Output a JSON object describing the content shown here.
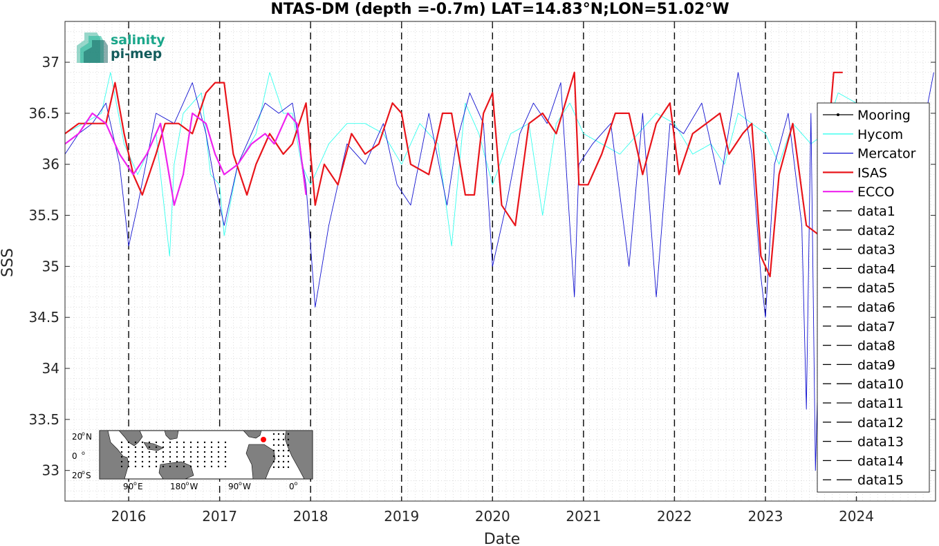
{
  "chart_data": {
    "type": "line",
    "title": "NTAS-DM (depth =-0.7m) LAT=14.83°N;LON=51.02°W",
    "xlabel": "Date",
    "ylabel": "SSS",
    "xlim": [
      2015.3,
      2024.87
    ],
    "ylim": [
      32.7,
      37.4
    ],
    "xticks": [
      2016,
      2017,
      2018,
      2019,
      2020,
      2021,
      2022,
      2023,
      2024
    ],
    "xtick_labels": [
      "2016",
      "2017",
      "2018",
      "2019",
      "2020",
      "2021",
      "2022",
      "2023",
      "2024"
    ],
    "yticks": [
      33,
      33.5,
      34,
      34.5,
      35,
      35.5,
      36,
      36.5,
      37
    ],
    "ytick_labels": [
      "33",
      "33.5",
      "34",
      "34.5",
      "35",
      "35.5",
      "36",
      "36.5",
      "37"
    ],
    "grid": "minor-dotted",
    "legend_position": "right",
    "year_markers": [
      2016,
      2017,
      2018,
      2019,
      2020,
      2021,
      2022,
      2023,
      2024
    ],
    "series": [
      {
        "name": "Mooring",
        "color": "#000000",
        "style": "solid-dots",
        "x": [],
        "y": []
      },
      {
        "name": "Hycom",
        "color": "#33ffee",
        "style": "solid-thin",
        "x": [
          2015.3,
          2015.5,
          2015.7,
          2015.8,
          2015.95,
          2016.1,
          2016.3,
          2016.45,
          2016.5,
          2016.6,
          2016.8,
          2016.9,
          2017.0,
          2017.05,
          2017.2,
          2017.4,
          2017.55,
          2017.7,
          2017.8,
          2017.9,
          2018.0,
          2018.2,
          2018.4,
          2018.6,
          2018.8,
          2019.0,
          2019.2,
          2019.4,
          2019.55,
          2019.7,
          2019.85,
          2020.0,
          2020.2,
          2020.4,
          2020.55,
          2020.7,
          2020.85,
          2021.0,
          2021.2,
          2021.4,
          2021.6,
          2021.8,
          2022.0,
          2022.2,
          2022.4,
          2022.55,
          2022.7,
          2022.85,
          2023.0,
          2023.15,
          2023.3,
          2023.5,
          2023.65,
          2023.8,
          2024.0
        ],
        "y": [
          36.3,
          36.4,
          36.5,
          36.9,
          36.2,
          35.9,
          36.3,
          35.1,
          36.0,
          36.5,
          36.7,
          35.9,
          35.8,
          35.3,
          36.0,
          36.3,
          36.9,
          36.5,
          36.5,
          36.0,
          35.8,
          36.2,
          36.4,
          36.4,
          36.3,
          36.0,
          36.4,
          36.2,
          35.2,
          36.6,
          36.3,
          35.8,
          36.3,
          36.4,
          35.5,
          36.4,
          36.6,
          36.3,
          36.2,
          36.1,
          36.3,
          36.5,
          36.4,
          36.1,
          36.2,
          36.0,
          36.5,
          36.4,
          36.3,
          36.0,
          36.4,
          36.2,
          36.3,
          36.7,
          36.6
        ]
      },
      {
        "name": "Mercator",
        "color": "#1010d0",
        "style": "solid-thin",
        "x": [
          2015.3,
          2015.45,
          2015.6,
          2015.75,
          2015.9,
          2016.0,
          2016.1,
          2016.3,
          2016.5,
          2016.7,
          2016.85,
          2016.95,
          2017.05,
          2017.2,
          2017.35,
          2017.5,
          2017.65,
          2017.8,
          2017.95,
          2018.05,
          2018.2,
          2018.4,
          2018.6,
          2018.8,
          2018.95,
          2019.1,
          2019.3,
          2019.5,
          2019.6,
          2019.75,
          2019.9,
          2020.0,
          2020.15,
          2020.3,
          2020.45,
          2020.6,
          2020.75,
          2020.9,
          2020.95,
          2021.1,
          2021.3,
          2021.5,
          2021.65,
          2021.8,
          2021.95,
          2022.1,
          2022.3,
          2022.5,
          2022.7,
          2022.85,
          2022.95,
          2023.0,
          2023.1,
          2023.25,
          2023.4,
          2023.45,
          2023.5,
          2023.55,
          2023.6,
          2023.75,
          2023.9,
          2024.1,
          2024.3,
          2024.5,
          2024.7,
          2024.85
        ],
        "y": [
          36.1,
          36.3,
          36.4,
          36.6,
          36.0,
          35.2,
          35.6,
          36.5,
          36.4,
          36.8,
          36.3,
          35.8,
          35.4,
          36.0,
          36.3,
          36.6,
          36.5,
          36.6,
          35.8,
          34.6,
          35.4,
          36.2,
          36.0,
          36.4,
          35.8,
          35.6,
          36.5,
          35.6,
          36.2,
          36.7,
          36.4,
          35.0,
          35.6,
          36.3,
          36.6,
          36.4,
          36.8,
          34.7,
          36.0,
          36.2,
          36.4,
          35.0,
          36.5,
          34.7,
          36.4,
          36.3,
          36.6,
          35.8,
          36.9,
          36.1,
          34.9,
          34.5,
          36.0,
          36.5,
          35.4,
          33.6,
          36.5,
          33.0,
          34.7,
          36.2,
          36.5,
          36.0,
          35.8,
          36.4,
          36.2,
          36.9
        ]
      },
      {
        "name": "ISAS",
        "color": "#e8141a",
        "style": "solid-thick",
        "x": [
          2015.3,
          2015.45,
          2015.55,
          2015.65,
          2015.75,
          2015.85,
          2015.95,
          2016.05,
          2016.15,
          2016.3,
          2016.4,
          2016.55,
          2016.7,
          2016.85,
          2016.95,
          2017.05,
          2017.15,
          2017.3,
          2017.4,
          2017.55,
          2017.7,
          2017.8,
          2017.95,
          2018.05,
          2018.15,
          2018.3,
          2018.45,
          2018.6,
          2018.75,
          2018.9,
          2019.0,
          2019.1,
          2019.3,
          2019.45,
          2019.55,
          2019.7,
          2019.8,
          2019.9,
          2020.0,
          2020.1,
          2020.25,
          2020.4,
          2020.55,
          2020.7,
          2020.8,
          2020.9,
          2020.95,
          2021.05,
          2021.2,
          2021.35,
          2021.5,
          2021.65,
          2021.8,
          2021.95,
          2022.05,
          2022.2,
          2022.35,
          2022.5,
          2022.6,
          2022.75,
          2022.85,
          2022.95,
          2023.05,
          2023.15,
          2023.3,
          2023.45,
          2023.6,
          2023.75,
          2023.85
        ],
        "y": [
          36.3,
          36.4,
          36.4,
          36.4,
          36.4,
          36.8,
          36.3,
          35.9,
          35.7,
          36.1,
          36.4,
          36.4,
          36.3,
          36.7,
          36.8,
          36.8,
          36.1,
          35.7,
          36.0,
          36.3,
          36.1,
          36.2,
          36.6,
          35.6,
          36.0,
          35.8,
          36.3,
          36.1,
          36.2,
          36.6,
          36.5,
          36.0,
          35.9,
          36.5,
          36.5,
          35.7,
          35.7,
          36.5,
          36.7,
          35.6,
          35.4,
          36.4,
          36.5,
          36.3,
          36.6,
          36.9,
          35.8,
          35.8,
          36.1,
          36.5,
          36.5,
          35.9,
          36.4,
          36.6,
          35.9,
          36.3,
          36.4,
          36.5,
          36.1,
          36.3,
          36.4,
          35.1,
          34.9,
          35.9,
          36.4,
          35.4,
          35.3,
          36.9,
          36.9
        ]
      },
      {
        "name": "ECCO",
        "color": "#ee22ee",
        "style": "solid-thick",
        "x": [
          2015.3,
          2015.45,
          2015.6,
          2015.75,
          2015.9,
          2016.05,
          2016.2,
          2016.35,
          2016.5,
          2016.6,
          2016.7,
          2016.85,
          2016.95,
          2017.05,
          2017.2,
          2017.35,
          2017.5,
          2017.6,
          2017.75,
          2017.85,
          2017.95
        ],
        "y": [
          36.2,
          36.3,
          36.5,
          36.4,
          36.1,
          35.9,
          36.1,
          36.4,
          35.6,
          35.9,
          36.5,
          36.4,
          36.1,
          35.9,
          36.0,
          36.2,
          36.3,
          36.2,
          36.5,
          36.4,
          35.7
        ]
      },
      {
        "name": "data1",
        "color": "#000000",
        "style": "dashed"
      },
      {
        "name": "data2",
        "color": "#000000",
        "style": "dashed"
      },
      {
        "name": "data3",
        "color": "#000000",
        "style": "dashed"
      },
      {
        "name": "data4",
        "color": "#000000",
        "style": "dashed"
      },
      {
        "name": "data5",
        "color": "#000000",
        "style": "dashed"
      },
      {
        "name": "data6",
        "color": "#000000",
        "style": "dashed"
      },
      {
        "name": "data7",
        "color": "#000000",
        "style": "dashed"
      },
      {
        "name": "data8",
        "color": "#000000",
        "style": "dashed"
      },
      {
        "name": "data9",
        "color": "#000000",
        "style": "dashed"
      },
      {
        "name": "data10",
        "color": "#000000",
        "style": "dashed"
      },
      {
        "name": "data11",
        "color": "#000000",
        "style": "dashed"
      },
      {
        "name": "data12",
        "color": "#000000",
        "style": "dashed"
      },
      {
        "name": "data13",
        "color": "#000000",
        "style": "dashed"
      },
      {
        "name": "data14",
        "color": "#000000",
        "style": "dashed"
      },
      {
        "name": "data15",
        "color": "#000000",
        "style": "dashed"
      }
    ]
  },
  "logo": {
    "line1": "salinity",
    "line2": "pi-mep",
    "color1": "#1aa68a",
    "color2": "#135c5c"
  },
  "inset_map": {
    "land_color": "#808080",
    "ocean_color": "#ffffff",
    "marker_color": "#ff0000",
    "lat_labels": [
      "20",
      "0",
      "20"
    ],
    "lat_suffixes": [
      "N",
      "",
      "S"
    ],
    "lon_labels": [
      "90",
      "180",
      "90",
      "0"
    ],
    "lon_suffixes": [
      "E",
      "W",
      "W",
      ""
    ],
    "degree_symbol": "o"
  }
}
